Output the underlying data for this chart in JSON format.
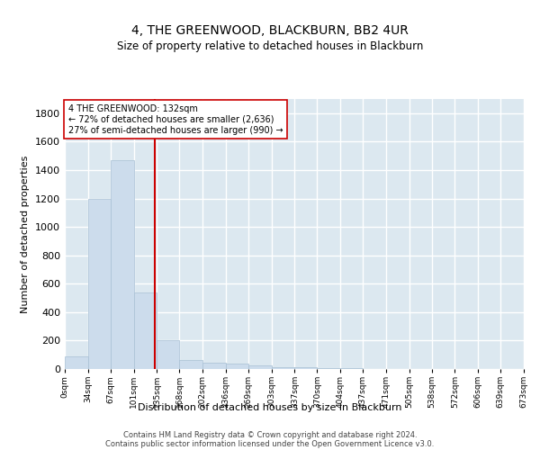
{
  "title": "4, THE GREENWOOD, BLACKBURN, BB2 4UR",
  "subtitle": "Size of property relative to detached houses in Blackburn",
  "xlabel": "Distribution of detached houses by size in Blackburn",
  "ylabel": "Number of detached properties",
  "bar_color": "#ccdcec",
  "bar_edgecolor": "#a8c0d4",
  "background_color": "#dce8f0",
  "plot_bg_color": "#dce8f0",
  "grid_color": "#ffffff",
  "bin_edges": [
    0,
    34,
    67,
    101,
    135,
    168,
    202,
    236,
    269,
    303,
    337,
    370,
    404,
    437,
    471,
    505,
    538,
    572,
    606,
    639,
    673
  ],
  "bar_heights": [
    90,
    1200,
    1470,
    540,
    205,
    65,
    45,
    35,
    28,
    15,
    10,
    8,
    5,
    3,
    2,
    1,
    1,
    0,
    0,
    0
  ],
  "property_size": 132,
  "vline_color": "#cc0000",
  "annotation_line1": "4 THE GREENWOOD: 132sqm",
  "annotation_line2": "← 72% of detached houses are smaller (2,636)",
  "annotation_line3": "27% of semi-detached houses are larger (990) →",
  "annotation_box_color": "#ffffff",
  "annotation_box_edgecolor": "#cc0000",
  "ylim": [
    0,
    1900
  ],
  "yticks": [
    0,
    200,
    400,
    600,
    800,
    1000,
    1200,
    1400,
    1600,
    1800
  ],
  "tick_labels": [
    "0sqm",
    "34sqm",
    "67sqm",
    "101sqm",
    "135sqm",
    "168sqm",
    "202sqm",
    "236sqm",
    "269sqm",
    "303sqm",
    "337sqm",
    "370sqm",
    "404sqm",
    "437sqm",
    "471sqm",
    "505sqm",
    "538sqm",
    "572sqm",
    "606sqm",
    "639sqm",
    "673sqm"
  ],
  "footer_line1": "Contains HM Land Registry data © Crown copyright and database right 2024.",
  "footer_line2": "Contains public sector information licensed under the Open Government Licence v3.0."
}
